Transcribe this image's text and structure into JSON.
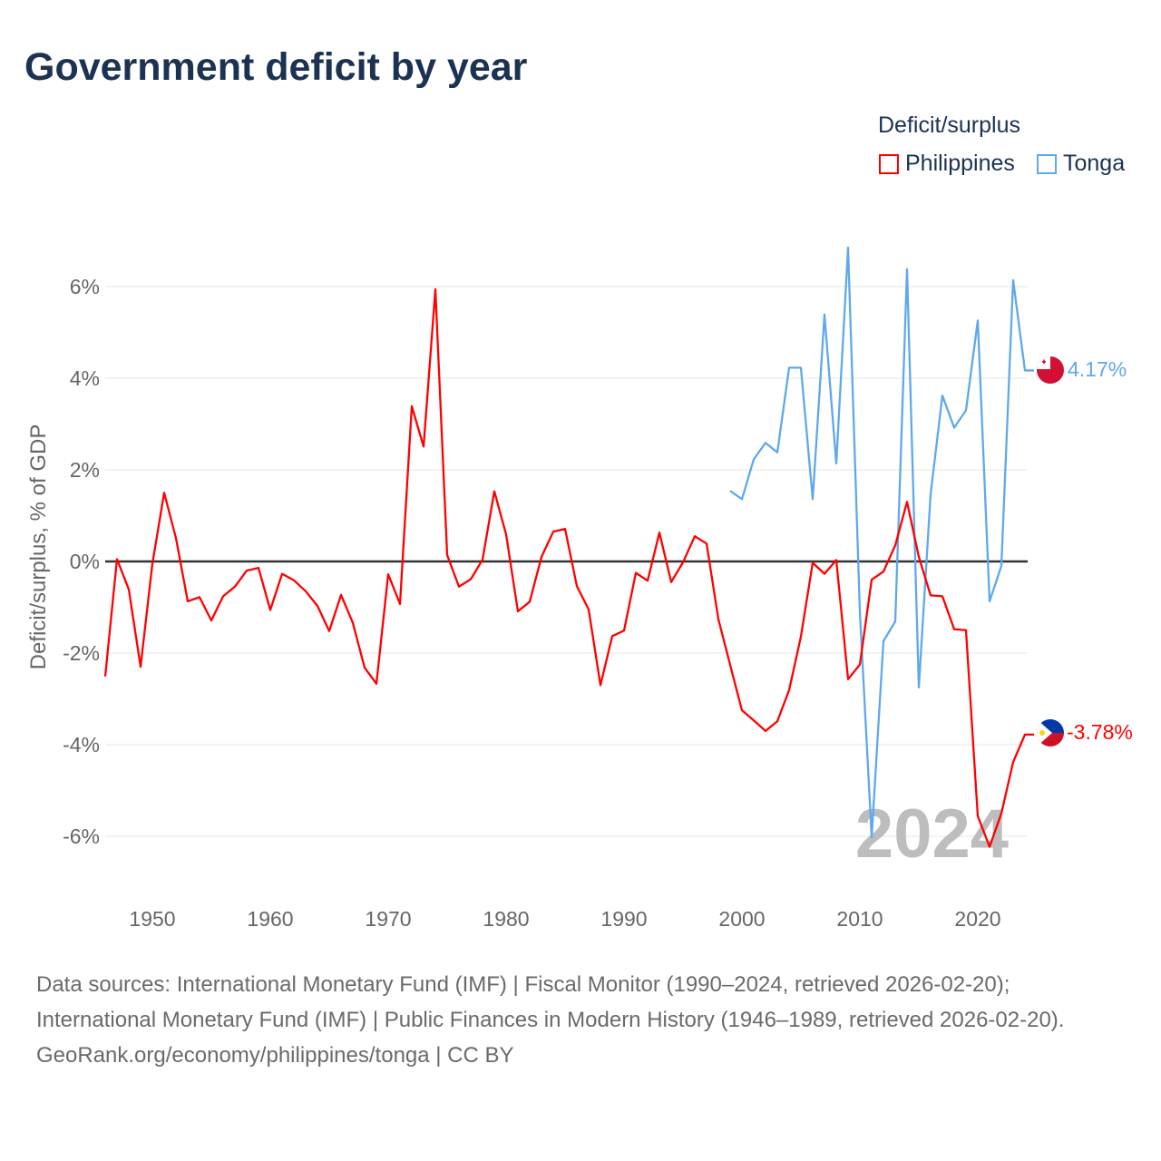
{
  "title": "Government deficit by year",
  "legend": {
    "title": "Deficit/surplus",
    "items": [
      {
        "label": "Philippines",
        "color": "#ff0000"
      },
      {
        "label": "Tonga",
        "color": "#5fa8ec"
      }
    ]
  },
  "year_watermark": "2024",
  "end_labels": {
    "philippines": "-3.78%",
    "tonga": "4.17%"
  },
  "footer": {
    "sources": "Data sources: International Monetary Fund (IMF) | Fiscal Monitor (1990–2024, retrieved 2026-02-20); International Monetary Fund (IMF) | Public Finances in Modern History (1946–1989, retrieved 2026-02-20).",
    "credit": "GeoRank.org/economy/philippines/tonga | CC BY"
  },
  "chart_data": {
    "type": "line",
    "title": "Government deficit by year",
    "xlabel": "",
    "ylabel": "Deficit/surplus, % of GDP",
    "xlim": [
      1946,
      2024
    ],
    "ylim": [
      -7,
      7
    ],
    "xticks": [
      1950,
      1960,
      1970,
      1980,
      1990,
      2000,
      2010,
      2020
    ],
    "xtick_labels": [
      "1950",
      "1960",
      "1970",
      "1980",
      "1990",
      "2000",
      "2010",
      "2020"
    ],
    "yticks": [
      -6,
      -4,
      -2,
      0,
      2,
      4,
      6
    ],
    "ytick_labels": [
      "-6%",
      "-4%",
      "-2%",
      "0%",
      "2%",
      "4%",
      "6%"
    ],
    "grid": true,
    "legend_position": "top-right",
    "series": [
      {
        "name": "Philippines",
        "color": "#ff0000",
        "start_year": 1946,
        "values": [
          -2.51,
          0.05,
          -0.61,
          -2.3,
          -0.05,
          1.5,
          0.51,
          -0.87,
          -0.78,
          -1.29,
          -0.76,
          -0.55,
          -0.2,
          -0.14,
          -1.06,
          -0.27,
          -0.41,
          -0.65,
          -0.97,
          -1.52,
          -0.73,
          -1.34,
          -2.32,
          -2.67,
          -0.28,
          -0.93,
          3.39,
          2.51,
          5.94,
          0.14,
          -0.55,
          -0.39,
          0.04,
          1.53,
          0.59,
          -1.09,
          -0.88,
          0.1,
          0.65,
          0.71,
          -0.54,
          -1.05,
          -2.7,
          -1.63,
          -1.51,
          -0.25,
          -0.42,
          0.63,
          -0.45,
          -0.02,
          0.55,
          0.39,
          -1.26,
          -2.26,
          -3.25,
          -3.47,
          -3.7,
          -3.49,
          -2.81,
          -1.64,
          -0.03,
          -0.27,
          0.03,
          -2.57,
          -2.25,
          -0.4,
          -0.22,
          0.35,
          1.3,
          0.1,
          -0.74,
          -0.76,
          -1.48,
          -1.5,
          -5.56,
          -6.23,
          -5.5,
          -4.38,
          -3.78
        ]
      },
      {
        "name": "Tonga",
        "color": "#5fa8ec",
        "start_year": 1999,
        "values": [
          1.54,
          1.36,
          2.23,
          2.59,
          2.38,
          4.23,
          4.23,
          1.36,
          5.39,
          2.14,
          6.85,
          -1.1,
          -6.02,
          -1.74,
          -1.31,
          6.38,
          -2.75,
          1.47,
          3.62,
          2.92,
          3.3,
          5.26,
          -0.87,
          -0.1,
          6.14,
          4.17
        ]
      }
    ]
  }
}
